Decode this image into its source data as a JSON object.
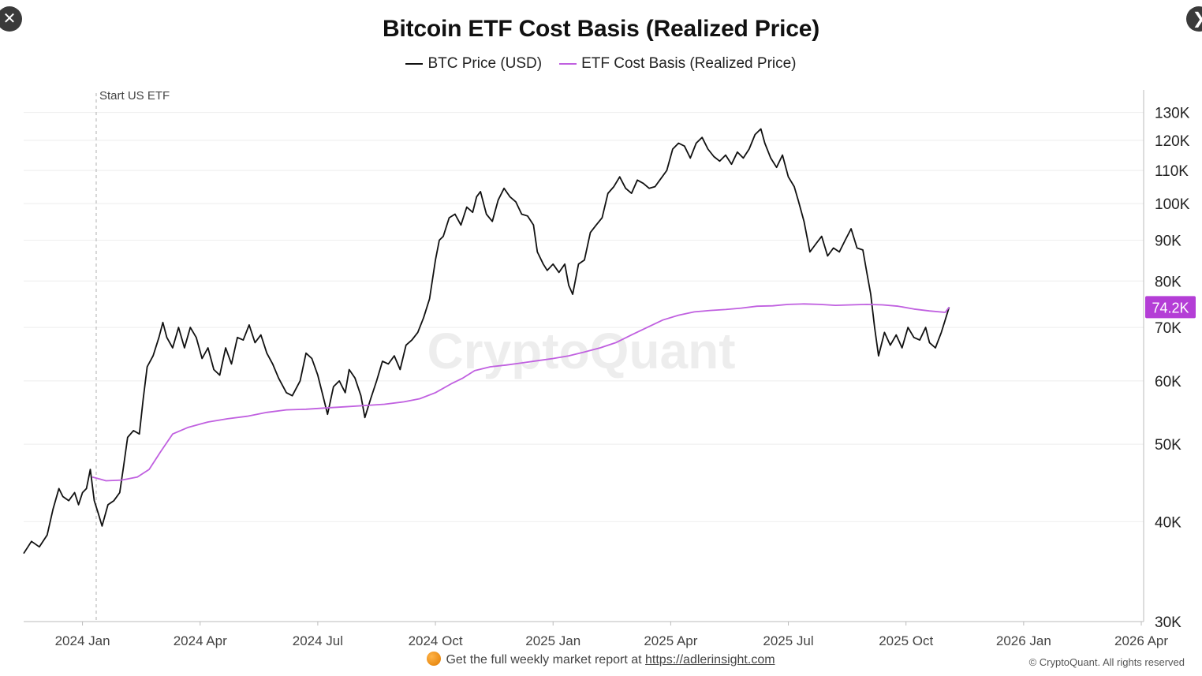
{
  "chart_data": {
    "type": "line",
    "title": "Bitcoin ETF Cost Basis (Realized Price)",
    "yscale": "log",
    "ylim": [
      30000,
      135000
    ],
    "y_ticks": [
      {
        "value": 30000,
        "label": "30K"
      },
      {
        "value": 40000,
        "label": "40K"
      },
      {
        "value": 50000,
        "label": "50K"
      },
      {
        "value": 60000,
        "label": "60K"
      },
      {
        "value": 70000,
        "label": "70K"
      },
      {
        "value": 80000,
        "label": "80K"
      },
      {
        "value": 90000,
        "label": "90K"
      },
      {
        "value": 100000,
        "label": "100K"
      },
      {
        "value": 110000,
        "label": "110K"
      },
      {
        "value": 120000,
        "label": "120K"
      },
      {
        "value": 130000,
        "label": "130K"
      }
    ],
    "x_ticks": [
      "2024 Jan",
      "2024 Apr",
      "2024 Jul",
      "2024 Oct",
      "2025 Jan",
      "2025 Apr",
      "2025 Jul",
      "2025 Oct",
      "2026 Jan",
      "2026 Apr"
    ],
    "x_range_months": [
      -1.5,
      27.1
    ],
    "annotation": {
      "label": "Start US ETF",
      "month": 0.35
    },
    "current_value_label": "74.2K",
    "current_value": 74200,
    "series": [
      {
        "name": "BTC Price (USD)",
        "color": "#111111",
        "points": [
          [
            -1.5,
            36500
          ],
          [
            -1.3,
            37800
          ],
          [
            -1.1,
            37200
          ],
          [
            -0.9,
            38500
          ],
          [
            -0.75,
            41500
          ],
          [
            -0.6,
            44000
          ],
          [
            -0.5,
            43000
          ],
          [
            -0.35,
            42500
          ],
          [
            -0.2,
            43500
          ],
          [
            -0.1,
            42000
          ],
          [
            0.0,
            43500
          ],
          [
            0.1,
            44000
          ],
          [
            0.2,
            46500
          ],
          [
            0.3,
            42500
          ],
          [
            0.4,
            41000
          ],
          [
            0.5,
            39500
          ],
          [
            0.65,
            42000
          ],
          [
            0.8,
            42500
          ],
          [
            0.95,
            43500
          ],
          [
            1.05,
            47000
          ],
          [
            1.15,
            51000
          ],
          [
            1.3,
            52000
          ],
          [
            1.45,
            51500
          ],
          [
            1.55,
            57000
          ],
          [
            1.65,
            62500
          ],
          [
            1.8,
            64500
          ],
          [
            1.95,
            68000
          ],
          [
            2.05,
            71000
          ],
          [
            2.15,
            68000
          ],
          [
            2.3,
            66000
          ],
          [
            2.45,
            70000
          ],
          [
            2.6,
            66000
          ],
          [
            2.75,
            70000
          ],
          [
            2.9,
            68000
          ],
          [
            3.05,
            64000
          ],
          [
            3.2,
            66000
          ],
          [
            3.35,
            62000
          ],
          [
            3.5,
            61000
          ],
          [
            3.65,
            66000
          ],
          [
            3.8,
            63000
          ],
          [
            3.95,
            68000
          ],
          [
            4.1,
            67500
          ],
          [
            4.25,
            70500
          ],
          [
            4.4,
            67000
          ],
          [
            4.55,
            68500
          ],
          [
            4.7,
            65000
          ],
          [
            4.85,
            63000
          ],
          [
            5.0,
            60500
          ],
          [
            5.2,
            58000
          ],
          [
            5.35,
            57500
          ],
          [
            5.55,
            60000
          ],
          [
            5.7,
            65000
          ],
          [
            5.85,
            64000
          ],
          [
            6.0,
            61000
          ],
          [
            6.15,
            57000
          ],
          [
            6.25,
            54500
          ],
          [
            6.4,
            59000
          ],
          [
            6.55,
            60000
          ],
          [
            6.7,
            58000
          ],
          [
            6.8,
            62000
          ],
          [
            6.95,
            60500
          ],
          [
            7.1,
            57500
          ],
          [
            7.2,
            54000
          ],
          [
            7.35,
            57000
          ],
          [
            7.5,
            60000
          ],
          [
            7.65,
            63500
          ],
          [
            7.8,
            63000
          ],
          [
            7.95,
            64500
          ],
          [
            8.1,
            62000
          ],
          [
            8.25,
            66500
          ],
          [
            8.4,
            67500
          ],
          [
            8.55,
            69000
          ],
          [
            8.7,
            72000
          ],
          [
            8.85,
            76000
          ],
          [
            9.0,
            85000
          ],
          [
            9.1,
            90000
          ],
          [
            9.2,
            91000
          ],
          [
            9.35,
            96000
          ],
          [
            9.5,
            97000
          ],
          [
            9.65,
            94000
          ],
          [
            9.8,
            99000
          ],
          [
            9.95,
            97500
          ],
          [
            10.05,
            102000
          ],
          [
            10.15,
            103500
          ],
          [
            10.3,
            97000
          ],
          [
            10.45,
            95000
          ],
          [
            10.6,
            101000
          ],
          [
            10.75,
            104500
          ],
          [
            10.9,
            102000
          ],
          [
            11.05,
            100500
          ],
          [
            11.2,
            97000
          ],
          [
            11.35,
            96500
          ],
          [
            11.5,
            94000
          ],
          [
            11.6,
            87000
          ],
          [
            11.75,
            84000
          ],
          [
            11.85,
            82500
          ],
          [
            12.0,
            84000
          ],
          [
            12.15,
            82000
          ],
          [
            12.3,
            84000
          ],
          [
            12.4,
            79000
          ],
          [
            12.5,
            77000
          ],
          [
            12.65,
            84000
          ],
          [
            12.8,
            85000
          ],
          [
            12.95,
            92000
          ],
          [
            13.1,
            94000
          ],
          [
            13.25,
            96000
          ],
          [
            13.4,
            103000
          ],
          [
            13.55,
            105000
          ],
          [
            13.7,
            108000
          ],
          [
            13.85,
            104500
          ],
          [
            14.0,
            103000
          ],
          [
            14.15,
            107000
          ],
          [
            14.3,
            106000
          ],
          [
            14.45,
            104500
          ],
          [
            14.6,
            105000
          ],
          [
            14.75,
            107500
          ],
          [
            14.9,
            110000
          ],
          [
            15.05,
            117000
          ],
          [
            15.2,
            119000
          ],
          [
            15.35,
            118000
          ],
          [
            15.5,
            114000
          ],
          [
            15.65,
            119000
          ],
          [
            15.8,
            121000
          ],
          [
            15.95,
            117000
          ],
          [
            16.1,
            114500
          ],
          [
            16.25,
            113000
          ],
          [
            16.4,
            115000
          ],
          [
            16.55,
            112000
          ],
          [
            16.7,
            116000
          ],
          [
            16.85,
            114000
          ],
          [
            17.0,
            117000
          ],
          [
            17.15,
            122000
          ],
          [
            17.3,
            124000
          ],
          [
            17.4,
            119000
          ],
          [
            17.55,
            114000
          ],
          [
            17.7,
            111000
          ],
          [
            17.85,
            115000
          ],
          [
            18.0,
            108000
          ],
          [
            18.15,
            105000
          ],
          [
            18.25,
            101000
          ],
          [
            18.4,
            95000
          ],
          [
            18.55,
            87000
          ],
          [
            18.7,
            89000
          ],
          [
            18.85,
            91000
          ],
          [
            19.0,
            86000
          ],
          [
            19.15,
            88000
          ],
          [
            19.3,
            87000
          ],
          [
            19.45,
            90000
          ],
          [
            19.6,
            93000
          ],
          [
            19.75,
            88000
          ],
          [
            19.9,
            87500
          ],
          [
            20.0,
            82000
          ],
          [
            20.1,
            77000
          ],
          [
            20.2,
            70000
          ],
          [
            20.3,
            64500
          ],
          [
            20.45,
            69000
          ],
          [
            20.6,
            66500
          ],
          [
            20.75,
            68500
          ],
          [
            20.9,
            66000
          ],
          [
            21.05,
            70000
          ],
          [
            21.2,
            68000
          ],
          [
            21.35,
            67500
          ],
          [
            21.5,
            70000
          ],
          [
            21.6,
            67000
          ],
          [
            21.75,
            66000
          ],
          [
            21.9,
            69000
          ],
          [
            22.0,
            71500
          ],
          [
            22.1,
            74200
          ]
        ]
      },
      {
        "name": "ETF Cost Basis (Realized Price)",
        "color": "#c060e0",
        "points": [
          [
            0.25,
            45500
          ],
          [
            0.6,
            45000
          ],
          [
            1.0,
            45100
          ],
          [
            1.4,
            45500
          ],
          [
            1.7,
            46500
          ],
          [
            2.0,
            49000
          ],
          [
            2.3,
            51500
          ],
          [
            2.7,
            52500
          ],
          [
            3.2,
            53300
          ],
          [
            3.7,
            53800
          ],
          [
            4.2,
            54200
          ],
          [
            4.7,
            54800
          ],
          [
            5.2,
            55200
          ],
          [
            5.7,
            55300
          ],
          [
            6.2,
            55500
          ],
          [
            6.7,
            55700
          ],
          [
            7.2,
            55900
          ],
          [
            7.7,
            56100
          ],
          [
            8.2,
            56500
          ],
          [
            8.6,
            57000
          ],
          [
            9.0,
            58000
          ],
          [
            9.4,
            59500
          ],
          [
            9.7,
            60500
          ],
          [
            10.0,
            61800
          ],
          [
            10.4,
            62500
          ],
          [
            10.8,
            62800
          ],
          [
            11.2,
            63200
          ],
          [
            11.6,
            63600
          ],
          [
            12.0,
            64000
          ],
          [
            12.4,
            64500
          ],
          [
            12.8,
            65200
          ],
          [
            13.2,
            66000
          ],
          [
            13.6,
            67000
          ],
          [
            14.0,
            68500
          ],
          [
            14.4,
            70000
          ],
          [
            14.8,
            71500
          ],
          [
            15.2,
            72500
          ],
          [
            15.6,
            73200
          ],
          [
            16.0,
            73500
          ],
          [
            16.4,
            73700
          ],
          [
            16.8,
            74000
          ],
          [
            17.2,
            74400
          ],
          [
            17.6,
            74500
          ],
          [
            18.0,
            74800
          ],
          [
            18.4,
            74900
          ],
          [
            18.8,
            74800
          ],
          [
            19.2,
            74600
          ],
          [
            19.6,
            74700
          ],
          [
            20.0,
            74800
          ],
          [
            20.4,
            74700
          ],
          [
            20.8,
            74400
          ],
          [
            21.2,
            73800
          ],
          [
            21.6,
            73400
          ],
          [
            22.0,
            73100
          ],
          [
            22.1,
            74200
          ]
        ]
      }
    ],
    "watermark": "CryptoQuant"
  },
  "footer": {
    "text": "Get the full weekly market report at",
    "link": "https://adlerinsight.com",
    "copyright": "© CryptoQuant. All rights reserved"
  },
  "controls": {
    "close_glyph": "✕",
    "next_glyph": "❯"
  }
}
